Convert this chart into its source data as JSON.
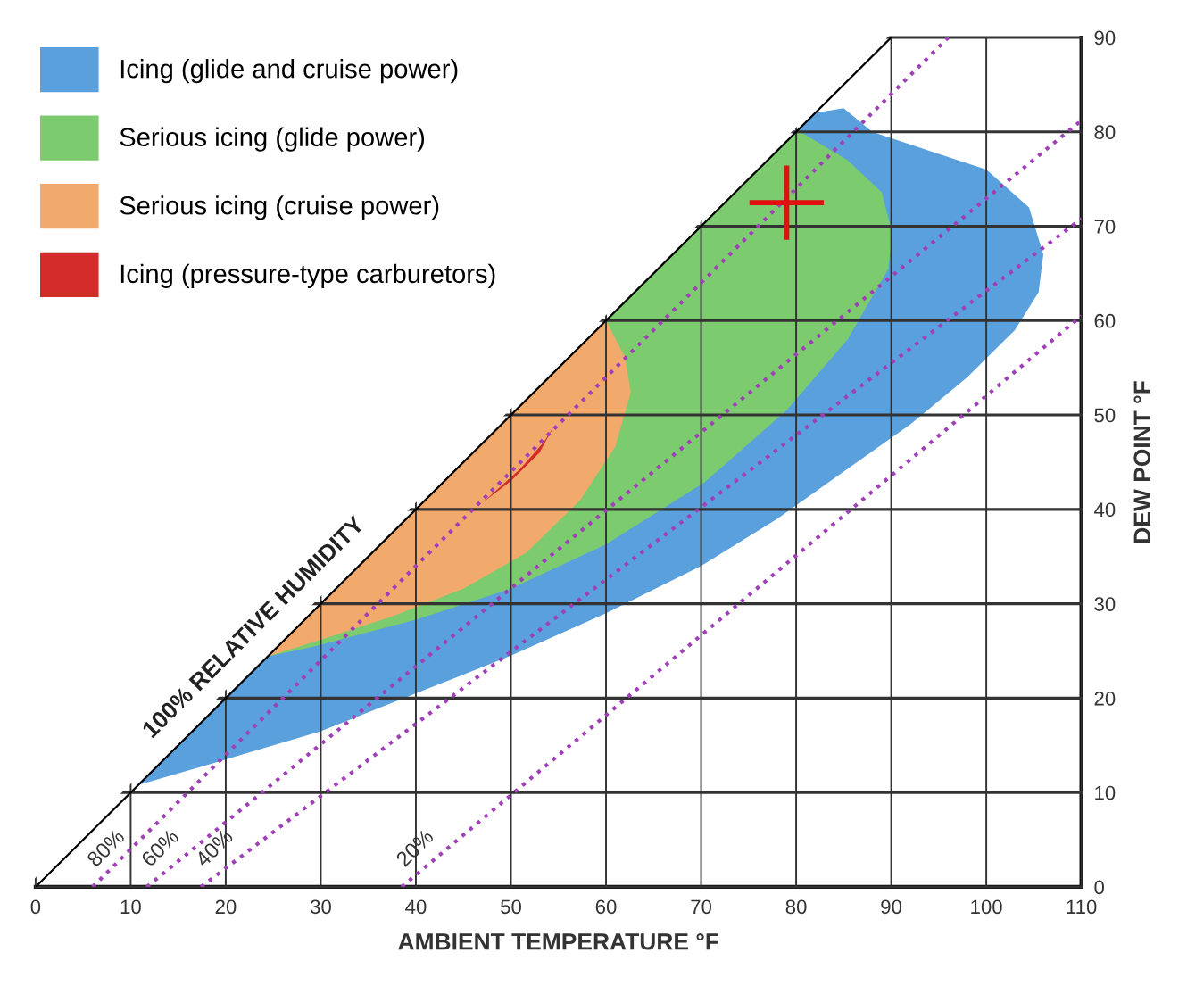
{
  "chart_data": {
    "type": "area",
    "xlabel": "AMBIENT TEMPERATURE °F",
    "ylabel": "DEW POINT °F",
    "xlim": [
      0,
      110
    ],
    "xticks": [
      0,
      10,
      20,
      30,
      40,
      50,
      60,
      70,
      80,
      90,
      100,
      110
    ],
    "ylim": [
      0,
      90
    ],
    "yticks": [
      0,
      10,
      20,
      30,
      40,
      50,
      60,
      70,
      80,
      90
    ],
    "grid": true,
    "legend": "top left",
    "series": [
      {
        "name": "Icing (glide and cruise power)",
        "color": "#5aa0dc",
        "x": [
          10.8,
          20,
          30,
          40,
          50,
          60,
          70,
          78,
          85,
          92,
          98,
          103,
          105.5,
          106,
          104.5,
          100,
          94,
          88,
          85,
          82,
          10.8
        ],
        "values": [
          10.8,
          13.5,
          16.5,
          20.5,
          24.5,
          29,
          34,
          39,
          44,
          49,
          54,
          59,
          63,
          67,
          72,
          76,
          78,
          80,
          82.5,
          82,
          10.8
        ]
      },
      {
        "name": "Serious icing (glide power)",
        "color": "#7ccb6e",
        "x": [
          24.4,
          29,
          40,
          50,
          60,
          70.4,
          79,
          85.4,
          89.7,
          90.1,
          89,
          85.4,
          80.8,
          80,
          24.4
        ],
        "values": [
          24.4,
          25.4,
          28.3,
          31.6,
          36.3,
          42.9,
          50.5,
          58,
          65.5,
          69.3,
          73.6,
          77,
          79.8,
          80,
          24.4
        ]
      },
      {
        "name": "Serious icing (cruise power)",
        "color": "#f2aa6c",
        "x": [
          24.4,
          60,
          62,
          62.6,
          61,
          57.3,
          51.6,
          45,
          37.6,
          29.1,
          24.4
        ],
        "values": [
          24.4,
          60,
          56.1,
          52.4,
          46.7,
          41,
          35.4,
          31.6,
          28.7,
          25.9,
          24.4
        ]
      },
      {
        "name": "Icing (pressure-type carburetors)",
        "color": "#d42b2b",
        "x": [
          47,
          51,
          53.5,
          54.5,
          53,
          50,
          47
        ],
        "values": [
          40.7,
          44.3,
          47.2,
          48.8,
          46,
          43,
          40.7
        ]
      },
      {
        "name": "100% RELATIVE HUMIDITY",
        "type": "line",
        "color": "#000000",
        "line_style": "solid",
        "x": [
          0,
          90
        ],
        "values": [
          0,
          90
        ]
      },
      {
        "name": "80%",
        "type": "line",
        "color": "#a040b8",
        "line_style": "dotted",
        "x": [
          6,
          96
        ],
        "values": [
          0,
          90
        ]
      },
      {
        "name": "60%",
        "type": "line",
        "color": "#a040b8",
        "line_style": "dotted",
        "x": [
          11.7,
          110
        ],
        "values": [
          0,
          81.2
        ]
      },
      {
        "name": "40%",
        "type": "line",
        "color": "#a040b8",
        "line_style": "dotted",
        "x": [
          17.4,
          110
        ],
        "values": [
          0,
          70.8
        ]
      },
      {
        "name": "20%",
        "type": "line",
        "color": "#a040b8",
        "line_style": "dotted",
        "x": [
          38.5,
          110
        ],
        "values": [
          0,
          60.5
        ]
      },
      {
        "type": "scatter",
        "color": "#e01010",
        "marker": "cross",
        "x": [
          79
        ],
        "values": [
          72.5
        ]
      }
    ]
  }
}
